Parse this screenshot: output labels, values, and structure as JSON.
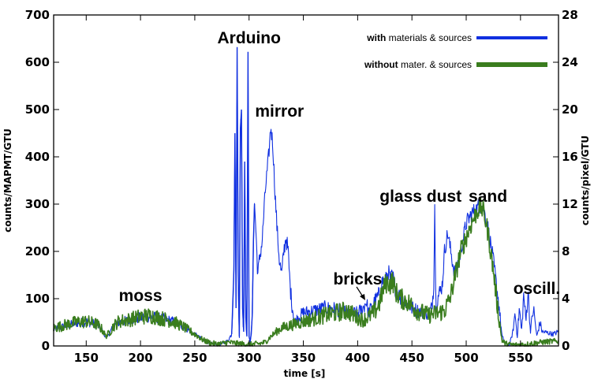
{
  "chart_data": {
    "type": "line",
    "xlabel": "time [s]",
    "ylabel": "counts/MAPMT/GTU",
    "y2label": "counts/pixel/GTU",
    "xlim": [
      120,
      585
    ],
    "ylim": [
      0,
      700
    ],
    "y2lim": [
      0,
      28
    ],
    "xticks": [
      150,
      200,
      250,
      300,
      350,
      400,
      450,
      500,
      550
    ],
    "yticks": [
      0,
      100,
      200,
      300,
      400,
      500,
      600,
      700
    ],
    "y2ticks": [
      0,
      4,
      8,
      12,
      16,
      20,
      24,
      28
    ],
    "grid": false,
    "legend": {
      "position": "top-right",
      "entries": [
        {
          "bold": "with",
          "rest": " materials & sources",
          "color": "#1030e0"
        },
        {
          "bold": "without",
          "rest": " mater. & sources",
          "color": "#3a7d1e"
        }
      ]
    },
    "annotations": [
      {
        "text": "moss",
        "x": 200,
        "y": 95
      },
      {
        "text": "Arduino",
        "x": 300,
        "y": 640
      },
      {
        "text": "mirror",
        "x": 328,
        "y": 485
      },
      {
        "text": "bricks",
        "x": 400,
        "y": 130
      },
      {
        "text": "glass dust",
        "x": 458,
        "y": 305
      },
      {
        "text": "sand",
        "x": 520,
        "y": 305
      },
      {
        "text": "oscill.",
        "x": 565,
        "y": 110
      }
    ],
    "series": [
      {
        "name": "with materials & sources",
        "color": "#1030e0",
        "x": [
          120,
          130,
          140,
          150,
          160,
          165,
          168,
          172,
          175,
          180,
          190,
          200,
          210,
          220,
          230,
          240,
          250,
          258,
          265,
          270,
          275,
          280,
          284,
          286,
          287,
          288,
          289,
          290,
          291,
          292,
          293,
          294,
          295,
          296,
          297,
          298,
          299,
          300,
          301,
          302,
          303,
          304,
          305,
          306,
          308,
          310,
          312,
          315,
          318,
          320,
          322,
          324,
          326,
          328,
          330,
          332,
          334,
          336,
          338,
          340,
          342,
          345,
          350,
          360,
          370,
          380,
          390,
          400,
          405,
          408,
          410,
          415,
          420,
          423,
          425,
          428,
          430,
          432,
          435,
          440,
          445,
          450,
          455,
          460,
          465,
          468,
          470,
          471,
          472,
          475,
          478,
          480,
          483,
          485,
          488,
          490,
          495,
          500,
          505,
          510,
          513,
          516,
          520,
          525,
          530,
          533,
          536,
          540,
          543,
          545,
          547,
          549,
          551,
          553,
          555,
          557,
          559,
          562,
          565,
          568,
          570,
          575,
          580,
          585
        ],
        "y": [
          35,
          42,
          48,
          52,
          45,
          32,
          18,
          28,
          40,
          50,
          55,
          60,
          62,
          58,
          52,
          40,
          25,
          12,
          5,
          3,
          5,
          10,
          25,
          160,
          450,
          80,
          632,
          150,
          20,
          460,
          500,
          80,
          30,
          390,
          60,
          20,
          622,
          20,
          10,
          25,
          70,
          220,
          300,
          260,
          150,
          190,
          220,
          330,
          400,
          465,
          420,
          320,
          240,
          180,
          150,
          200,
          230,
          200,
          120,
          80,
          50,
          60,
          70,
          75,
          80,
          78,
          70,
          70,
          80,
          95,
          70,
          90,
          110,
          140,
          130,
          160,
          140,
          150,
          120,
          100,
          90,
          80,
          75,
          70,
          68,
          80,
          120,
          300,
          90,
          110,
          130,
          200,
          240,
          210,
          170,
          150,
          200,
          260,
          280,
          290,
          300,
          290,
          250,
          180,
          90,
          20,
          5,
          3,
          30,
          70,
          20,
          80,
          30,
          110,
          50,
          120,
          30,
          80,
          20,
          50,
          30,
          28,
          25,
          30
        ]
      },
      {
        "name": "without mater. & sources",
        "color": "#3a7d1e",
        "x": [
          120,
          130,
          140,
          150,
          160,
          165,
          168,
          172,
          175,
          180,
          190,
          200,
          210,
          220,
          230,
          240,
          250,
          258,
          265,
          270,
          275,
          280,
          290,
          300,
          310,
          315,
          320,
          325,
          330,
          340,
          350,
          360,
          370,
          380,
          390,
          400,
          405,
          410,
          415,
          420,
          425,
          428,
          430,
          432,
          435,
          440,
          445,
          450,
          455,
          460,
          465,
          470,
          475,
          480,
          485,
          490,
          495,
          500,
          505,
          510,
          513,
          516,
          520,
          525,
          530,
          533,
          536,
          540,
          545,
          550,
          555,
          560,
          570,
          580,
          585
        ],
        "y": [
          38,
          44,
          50,
          52,
          46,
          34,
          20,
          30,
          42,
          52,
          56,
          62,
          64,
          58,
          52,
          40,
          25,
          12,
          6,
          4,
          5,
          8,
          5,
          3,
          5,
          8,
          20,
          30,
          38,
          45,
          52,
          58,
          65,
          70,
          75,
          60,
          55,
          62,
          70,
          90,
          130,
          135,
          130,
          140,
          115,
          100,
          95,
          85,
          75,
          70,
          65,
          68,
          70,
          75,
          100,
          150,
          200,
          230,
          260,
          285,
          295,
          285,
          240,
          160,
          60,
          12,
          5,
          3,
          2,
          3,
          3,
          5,
          8,
          10,
          10
        ]
      }
    ]
  }
}
